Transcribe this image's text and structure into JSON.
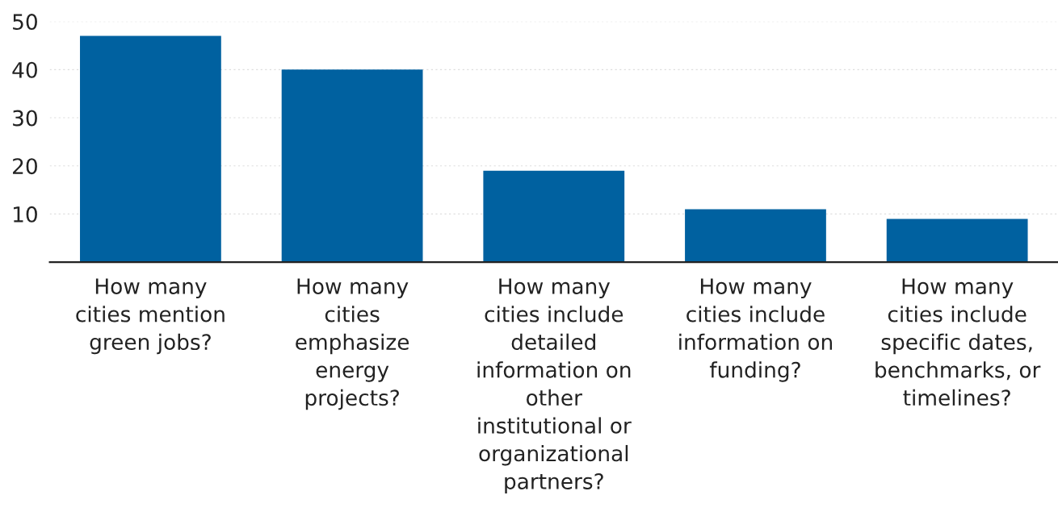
{
  "chart_data": {
    "type": "bar",
    "categories": [
      "How many\ncities mention\ngreen jobs?",
      "How many\ncities\nemphasize\nenergy\nprojects?",
      "How many\ncities include\ndetailed\ninformation on\nother\ninstitutional or\norganizational\npartners?",
      "How many\ncities include\ninformation on\nfunding?",
      "How many\ncities include\nspecific dates,\nbenchmarks, or\ntimelines?"
    ],
    "values": [
      47,
      40,
      19,
      11,
      9
    ],
    "color": "#0061a0",
    "ylim": [
      0,
      50
    ],
    "yticks": [
      10,
      20,
      30,
      40,
      50
    ],
    "grid": "y"
  }
}
